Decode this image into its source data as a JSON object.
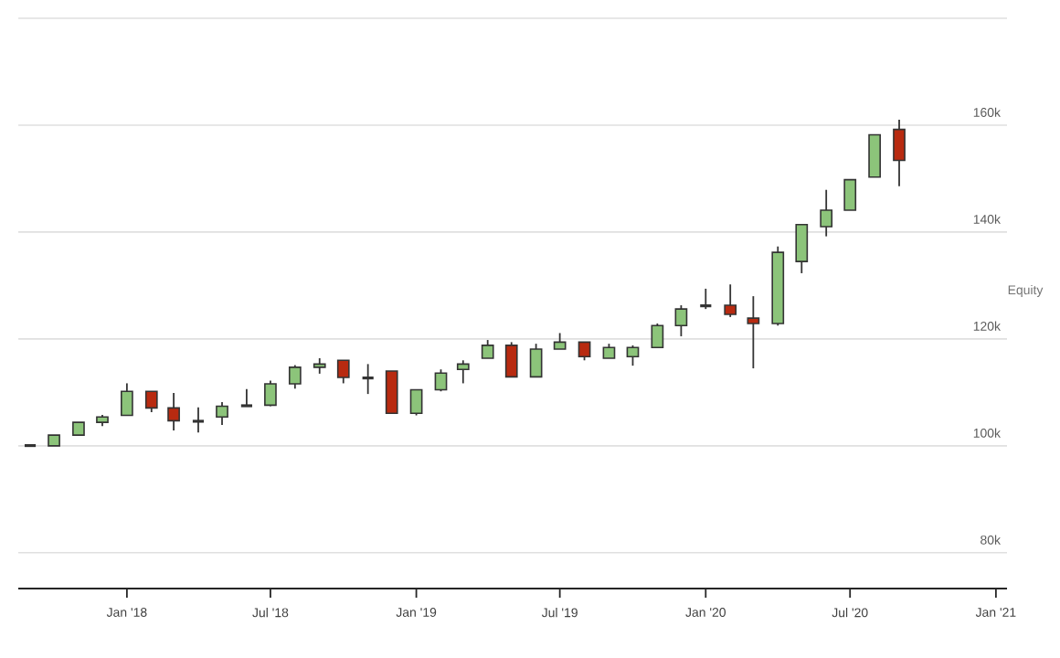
{
  "chart_data": {
    "type": "candlestick",
    "ylabel": "Equity",
    "x": [
      "2017-09",
      "2017-10",
      "2017-11",
      "2017-12",
      "2018-01",
      "2018-02",
      "2018-03",
      "2018-04",
      "2018-05",
      "2018-06",
      "2018-07",
      "2018-08",
      "2018-09",
      "2018-10",
      "2018-11",
      "2018-12",
      "2019-01",
      "2019-02",
      "2019-03",
      "2019-04",
      "2019-05",
      "2019-06",
      "2019-07",
      "2019-08",
      "2019-09",
      "2019-10",
      "2019-11",
      "2019-12",
      "2020-01",
      "2020-02",
      "2020-03",
      "2020-04",
      "2020-05",
      "2020-06",
      "2020-07",
      "2020-08",
      "2020-09"
    ],
    "ohlc": [
      [
        100,
        100.1,
        99.9,
        100.1
      ],
      [
        100,
        102,
        100,
        102
      ],
      [
        102,
        104.4,
        102,
        104.4
      ],
      [
        104.4,
        105.8,
        103.7,
        105.4
      ],
      [
        105.7,
        111.7,
        105.7,
        110.2
      ],
      [
        110.2,
        110.2,
        106.3,
        107.1
      ],
      [
        107.1,
        109.9,
        102.9,
        104.7
      ],
      [
        104.7,
        107.2,
        102.5,
        104.5
      ],
      [
        105.4,
        108.2,
        103.9,
        107.4
      ],
      [
        107.4,
        110.6,
        107.4,
        107.6
      ],
      [
        107.6,
        112.2,
        107.4,
        111.6
      ],
      [
        111.6,
        115.1,
        110.7,
        114.7
      ],
      [
        114.7,
        116.4,
        113.5,
        115.3
      ],
      [
        116,
        116,
        111.7,
        112.8
      ],
      [
        112.8,
        115.3,
        109.7,
        112.6
      ],
      [
        114,
        114,
        106.1,
        106.1
      ],
      [
        106.1,
        110.5,
        105.7,
        110.5
      ],
      [
        110.5,
        114.3,
        110.2,
        113.6
      ],
      [
        114.3,
        116,
        111.7,
        115.3
      ],
      [
        116.4,
        119.8,
        116.4,
        118.8
      ],
      [
        118.8,
        119.4,
        112.9,
        112.9
      ],
      [
        112.9,
        119.1,
        112.9,
        118.1
      ],
      [
        118.1,
        121.1,
        118.1,
        119.4
      ],
      [
        119.4,
        119.4,
        116,
        116.7
      ],
      [
        116.4,
        119.1,
        116.4,
        118.4
      ],
      [
        116.7,
        118.8,
        115,
        118.4
      ],
      [
        118.4,
        122.9,
        118.4,
        122.5
      ],
      [
        122.5,
        126.3,
        120.5,
        125.6
      ],
      [
        126.1,
        129.4,
        125.6,
        126.3
      ],
      [
        126.3,
        130.2,
        124.1,
        124.6
      ],
      [
        123.9,
        128,
        114.5,
        122.9
      ],
      [
        122.9,
        137.3,
        122.5,
        136.2
      ],
      [
        134.5,
        141.4,
        132.3,
        141.4
      ],
      [
        141,
        147.9,
        139.2,
        144.1
      ],
      [
        144.1,
        149.8,
        144.1,
        149.8
      ],
      [
        150.3,
        158.2,
        150.3,
        158.2
      ],
      [
        159.2,
        161,
        148.6,
        153.4
      ]
    ],
    "colors": [
      "#333333",
      "#8cc47a",
      "#8cc47a",
      "#8cc47a",
      "#8cc47a",
      "#b82a10",
      "#b82a10",
      "#333333",
      "#8cc47a",
      "#333333",
      "#8cc47a",
      "#8cc47a",
      "#8cc47a",
      "#b82a10",
      "#333333",
      "#b82a10",
      "#8cc47a",
      "#8cc47a",
      "#8cc47a",
      "#8cc47a",
      "#b82a10",
      "#8cc47a",
      "#8cc47a",
      "#b82a10",
      "#8cc47a",
      "#8cc47a",
      "#8cc47a",
      "#8cc47a",
      "#333333",
      "#b82a10",
      "#b82a10",
      "#8cc47a",
      "#8cc47a",
      "#8cc47a",
      "#8cc47a",
      "#8cc47a",
      "#b82a10"
    ],
    "xlim": [
      "2017-08-17",
      "2021-01-15"
    ],
    "xticks": [
      {
        "value": "2018-01",
        "label": "Jan '18"
      },
      {
        "value": "2018-07",
        "label": "Jul '18"
      },
      {
        "value": "2019-01",
        "label": "Jan '19"
      },
      {
        "value": "2019-07",
        "label": "Jul '19"
      },
      {
        "value": "2020-01",
        "label": "Jan '20"
      },
      {
        "value": "2020-07",
        "label": "Jul '20"
      },
      {
        "value": "2021-01",
        "label": "Jan '21"
      }
    ],
    "ylim": [
      73.3,
      180
    ],
    "yticks": [
      {
        "value": 80,
        "label": "80k"
      },
      {
        "value": 100,
        "label": "100k"
      },
      {
        "value": 120,
        "label": "120k"
      },
      {
        "value": 140,
        "label": "140k"
      },
      {
        "value": 160,
        "label": "160k"
      },
      {
        "value": 180,
        "label": null
      }
    ],
    "grid": "y"
  }
}
